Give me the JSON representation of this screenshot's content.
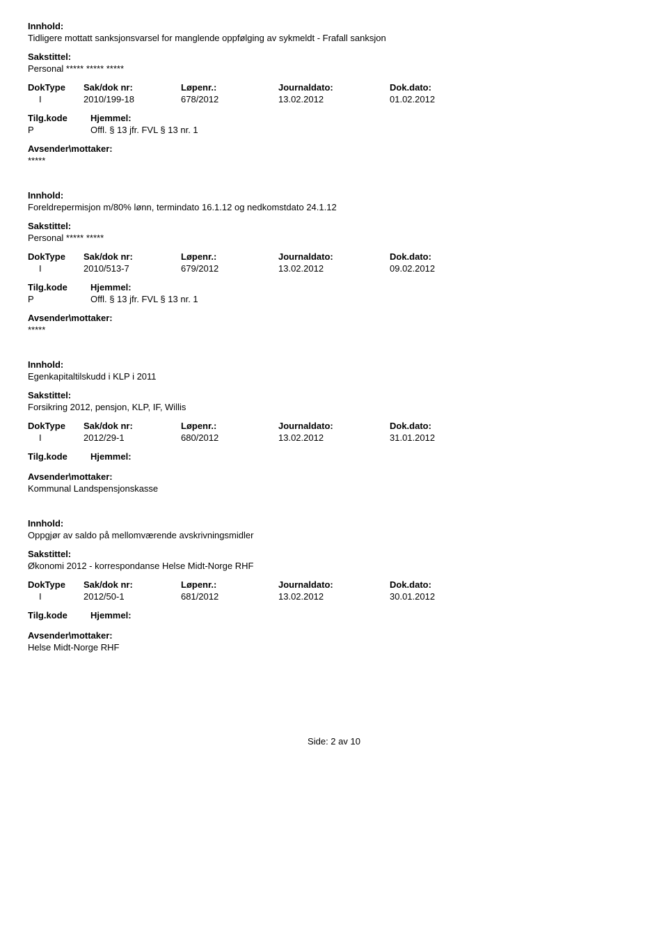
{
  "labels": {
    "innhold": "Innhold:",
    "sakstittel": "Sakstittel:",
    "doktype": "DokType",
    "sakdoknr": "Sak/dok nr:",
    "lopenr": "Løpenr.:",
    "journaldato": "Journaldato:",
    "dokdato": "Dok.dato:",
    "tilgkode": "Tilg.kode",
    "hjemmel": "Hjemmel:",
    "avsender": "Avsender\\mottaker:"
  },
  "records": [
    {
      "innhold": "Tidligere mottatt sanksjonsvarsel for manglende oppfølging av sykmeldt - Frafall sanksjon",
      "sakstittel": "Personal ***** ***** *****",
      "doktype": "I",
      "sakdoknr": "2010/199-18",
      "lopenr": "678/2012",
      "journaldato": "13.02.2012",
      "dokdato": "01.02.2012",
      "tilgkode": "P",
      "hjemmel": "Offl. § 13 jfr. FVL § 13 nr. 1",
      "avsender": "*****"
    },
    {
      "innhold": "Foreldrepermisjon m/80% lønn, termindato 16.1.12 og nedkomstdato 24.1.12",
      "sakstittel": "Personal ***** *****",
      "doktype": "I",
      "sakdoknr": "2010/513-7",
      "lopenr": "679/2012",
      "journaldato": "13.02.2012",
      "dokdato": "09.02.2012",
      "tilgkode": "P",
      "hjemmel": "Offl. § 13 jfr. FVL § 13 nr. 1",
      "avsender": "*****"
    },
    {
      "innhold": "Egenkapitaltilskudd i KLP i 2011",
      "sakstittel": "Forsikring 2012, pensjon, KLP, IF, Willis",
      "doktype": "I",
      "sakdoknr": "2012/29-1",
      "lopenr": "680/2012",
      "journaldato": "13.02.2012",
      "dokdato": "31.01.2012",
      "tilgkode": "",
      "hjemmel": "",
      "avsender": "Kommunal Landspensjonskasse"
    },
    {
      "innhold": "Oppgjør av saldo på mellomværende avskrivningsmidler",
      "sakstittel": "Økonomi 2012 - korrespondanse Helse Midt-Norge RHF",
      "doktype": "I",
      "sakdoknr": "2012/50-1",
      "lopenr": "681/2012",
      "journaldato": "13.02.2012",
      "dokdato": "30.01.2012",
      "tilgkode": "",
      "hjemmel": "",
      "avsender": "Helse Midt-Norge RHF"
    }
  ],
  "footer": "Side: 2 av 10"
}
